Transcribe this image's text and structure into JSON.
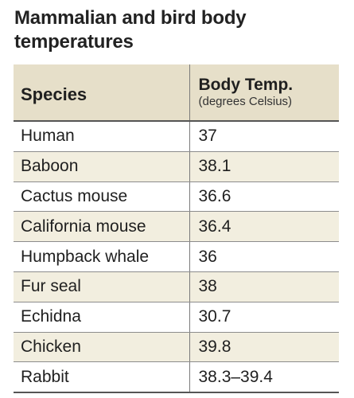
{
  "title": "Mammalian and bird body temperatures",
  "header": {
    "species": "Species",
    "temp": "Body Temp.",
    "temp_unit": "(degrees Celsius)"
  },
  "rows": [
    {
      "species": "Human",
      "temp": "37"
    },
    {
      "species": "Baboon",
      "temp": "38.1"
    },
    {
      "species": "Cactus mouse",
      "temp": "36.6"
    },
    {
      "species": "California mouse",
      "temp": "36.4"
    },
    {
      "species": "Humpback whale",
      "temp": "36"
    },
    {
      "species": "Fur seal",
      "temp": "38"
    },
    {
      "species": "Echidna",
      "temp": "30.7"
    },
    {
      "species": "Chicken",
      "temp": "39.8"
    },
    {
      "species": "Rabbit",
      "temp": "38.3–39.4"
    }
  ],
  "colors": {
    "header_bg": "#e6dfc9",
    "row_shade": "#f2eedf"
  }
}
